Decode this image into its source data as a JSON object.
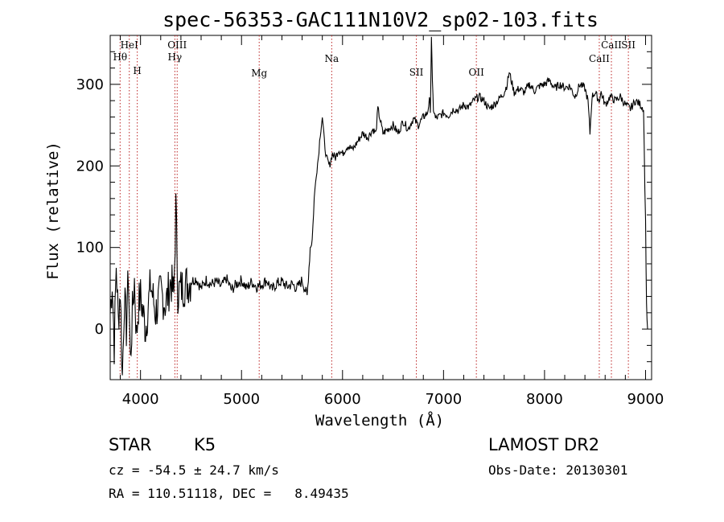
{
  "chart_data": {
    "type": "line",
    "title": "spec-56353-GAC111N10V2_sp02-103.fits",
    "xlabel": "Wavelength (Å)",
    "ylabel": "Flux (relative)",
    "xlim": [
      3700,
      9060
    ],
    "ylim": [
      -62,
      360
    ],
    "xticks": [
      4000,
      5000,
      6000,
      7000,
      8000,
      9000
    ],
    "yticks": [
      0,
      100,
      200,
      300
    ],
    "grid": false,
    "series": [
      {
        "color": "#000000",
        "x": [
          3700,
          3720,
          3740,
          3760,
          3780,
          3800,
          3820,
          3840,
          3860,
          3880,
          3900,
          3920,
          3940,
          3960,
          3980,
          4000,
          4050,
          4100,
          4150,
          4200,
          4250,
          4300,
          4330,
          4350,
          4370,
          4400,
          4450,
          4500,
          4550,
          4600,
          4650,
          4700,
          4750,
          4800,
          4850,
          4900,
          4950,
          5000,
          5050,
          5100,
          5150,
          5200,
          5250,
          5300,
          5350,
          5400,
          5450,
          5500,
          5550,
          5600,
          5650,
          5680,
          5700,
          5720,
          5740,
          5760,
          5780,
          5800,
          5820,
          5840,
          5870,
          5900,
          5930,
          5960,
          6000,
          6050,
          6100,
          6150,
          6200,
          6250,
          6300,
          6330,
          6350,
          6400,
          6450,
          6500,
          6550,
          6600,
          6650,
          6700,
          6750,
          6800,
          6840,
          6860,
          6870,
          6880,
          6890,
          6900,
          6920,
          6950,
          7000,
          7050,
          7100,
          7150,
          7200,
          7250,
          7300,
          7350,
          7400,
          7450,
          7500,
          7550,
          7600,
          7630,
          7650,
          7680,
          7700,
          7750,
          7800,
          7850,
          7900,
          7950,
          8000,
          8050,
          8100,
          8150,
          8200,
          8250,
          8300,
          8350,
          8400,
          8430,
          8450,
          8470,
          8500,
          8540,
          8560,
          8600,
          8650,
          8700,
          8750,
          8800,
          8850,
          8900,
          8950,
          8980,
          9000,
          9010,
          9020
        ],
        "y": [
          20,
          60,
          -20,
          80,
          10,
          50,
          -60,
          40,
          0,
          70,
          -40,
          20,
          60,
          -10,
          30,
          40,
          0,
          55,
          20,
          45,
          30,
          60,
          40,
          150,
          45,
          50,
          55,
          58,
          62,
          50,
          60,
          55,
          58,
          52,
          62,
          48,
          55,
          60,
          50,
          58,
          52,
          55,
          60,
          48,
          56,
          58,
          52,
          55,
          50,
          60,
          40,
          100,
          110,
          160,
          190,
          210,
          240,
          260,
          230,
          210,
          200,
          215,
          210,
          220,
          215,
          225,
          220,
          230,
          240,
          235,
          245,
          240,
          270,
          240,
          245,
          250,
          240,
          255,
          245,
          258,
          250,
          260,
          265,
          280,
          270,
          360,
          300,
          270,
          258,
          260,
          265,
          262,
          270,
          268,
          275,
          272,
          280,
          285,
          280,
          270,
          275,
          282,
          290,
          300,
          315,
          300,
          290,
          295,
          290,
          300,
          292,
          298,
          300,
          305,
          295,
          300,
          296,
          298,
          285,
          300,
          295,
          280,
          240,
          285,
          290,
          280,
          290,
          275,
          285,
          280,
          285,
          275,
          270,
          280,
          275,
          270,
          130,
          30,
          0
        ]
      }
    ],
    "emission_lines": [
      {
        "label": "Hθ",
        "wavelength": 3798
      },
      {
        "label": "HeI",
        "wavelength": 3889
      },
      {
        "label": "H",
        "wavelength": 3968
      },
      {
        "label": "OIII",
        "wavelength": 4363
      },
      {
        "label": "Hγ",
        "wavelength": 4340
      },
      {
        "label": "Mg",
        "wavelength": 5175
      },
      {
        "label": "Na",
        "wavelength": 5893
      },
      {
        "label": "SII",
        "wavelength": 6731
      },
      {
        "label": "OII",
        "wavelength": 7325
      },
      {
        "label": "SII",
        "wavelength": 8830
      },
      {
        "label": "CaII",
        "wavelength": 8542
      },
      {
        "label": "CaII",
        "wavelength": 8662
      }
    ]
  },
  "info": {
    "class": "STAR",
    "subclass": "K5",
    "survey": "LAMOST DR2",
    "cz": "cz = -54.5 ± 24.7 km/s",
    "obsdate": "Obs-Date: 20130301",
    "radec": "RA = 110.51118, DEC =   8.49435"
  }
}
